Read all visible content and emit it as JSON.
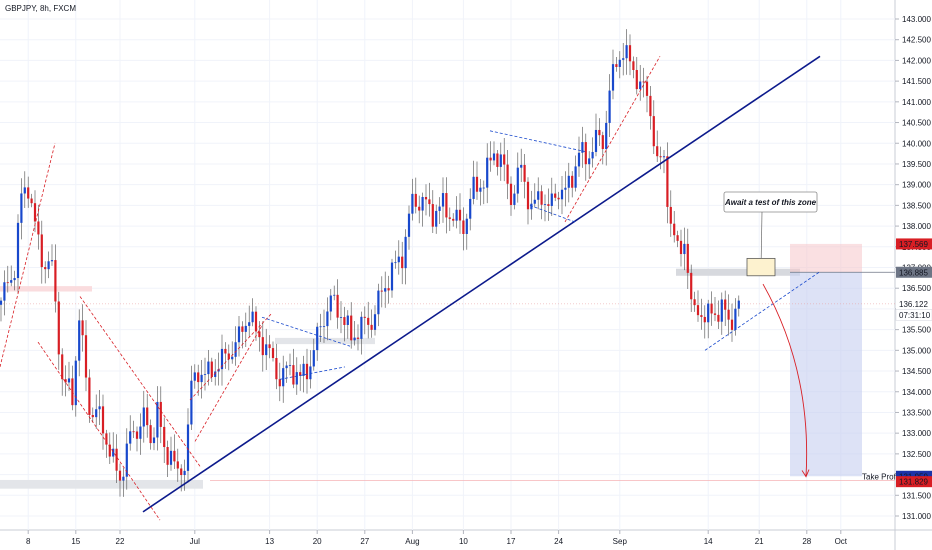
{
  "chart_data": {
    "type": "candlestick",
    "symbol": "GBPJPY, 8h, FXCM",
    "price_scale": {
      "min": 130.6,
      "max": 143.3,
      "ticks": [
        "143.000",
        "142.500",
        "142.000",
        "141.500",
        "141.000",
        "140.500",
        "140.000",
        "139.500",
        "139.000",
        "138.500",
        "138.000",
        "137.500",
        "137.000",
        "136.500",
        "136.000",
        "135.500",
        "135.000",
        "134.500",
        "134.000",
        "133.500",
        "133.000",
        "132.500",
        "132.000",
        "131.500",
        "131.000"
      ]
    },
    "time_scale": {
      "labels": [
        {
          "label": "8",
          "i": 8
        },
        {
          "label": "15",
          "i": 22
        },
        {
          "label": "22",
          "i": 35
        },
        {
          "label": "Jul",
          "i": 57
        },
        {
          "label": "13",
          "i": 79
        },
        {
          "label": "20",
          "i": 93
        },
        {
          "label": "27",
          "i": 107
        },
        {
          "label": "Aug",
          "i": 121
        },
        {
          "label": "10",
          "i": 136
        },
        {
          "label": "17",
          "i": 150
        },
        {
          "label": "24",
          "i": 164
        },
        {
          "label": "Sep",
          "i": 182
        },
        {
          "label": "14",
          "i": 208
        },
        {
          "label": "21",
          "i": 223
        },
        {
          "label": "28",
          "i": 237
        },
        {
          "label": "Oct",
          "i": 247
        }
      ]
    },
    "anchors": [
      [
        0,
        136.2
      ],
      [
        4,
        137.0
      ],
      [
        6,
        138.7
      ],
      [
        8,
        139.0
      ],
      [
        10,
        138.0
      ],
      [
        12,
        137.2
      ],
      [
        15,
        137.0
      ],
      [
        18,
        134.3
      ],
      [
        21,
        133.9
      ],
      [
        23,
        135.8
      ],
      [
        26,
        133.6
      ],
      [
        29,
        133.4
      ],
      [
        33,
        132.3
      ],
      [
        35,
        131.9
      ],
      [
        38,
        132.9
      ],
      [
        40,
        133.1
      ],
      [
        42,
        133.4
      ],
      [
        44,
        132.8
      ],
      [
        46,
        133.6
      ],
      [
        48,
        132.5
      ],
      [
        50,
        132.6
      ],
      [
        52,
        131.9
      ],
      [
        54,
        132.3
      ],
      [
        56,
        134.1
      ],
      [
        58,
        134.5
      ],
      [
        61,
        134.4
      ],
      [
        64,
        134.7
      ],
      [
        67,
        134.9
      ],
      [
        70,
        135.3
      ],
      [
        73,
        135.9
      ],
      [
        75,
        135.4
      ],
      [
        77,
        135.2
      ],
      [
        79,
        134.9
      ],
      [
        82,
        134.3
      ],
      [
        85,
        134.6
      ],
      [
        88,
        134.3
      ],
      [
        91,
        134.7
      ],
      [
        94,
        135.6
      ],
      [
        97,
        136.2
      ],
      [
        100,
        135.9
      ],
      [
        103,
        135.3
      ],
      [
        106,
        135.6
      ],
      [
        109,
        135.7
      ],
      [
        112,
        136.4
      ],
      [
        115,
        136.9
      ],
      [
        118,
        137.3
      ],
      [
        121,
        138.6
      ],
      [
        124,
        138.6
      ],
      [
        127,
        138.3
      ],
      [
        130,
        138.5
      ],
      [
        133,
        138.2
      ],
      [
        136,
        138.0
      ],
      [
        139,
        138.9
      ],
      [
        142,
        139.1
      ],
      [
        145,
        139.8
      ],
      [
        147,
        139.6
      ],
      [
        150,
        138.7
      ],
      [
        153,
        139.4
      ],
      [
        156,
        138.4
      ],
      [
        159,
        138.8
      ],
      [
        161,
        138.4
      ],
      [
        164,
        138.9
      ],
      [
        166,
        138.8
      ],
      [
        168,
        139.2
      ],
      [
        170,
        139.8
      ],
      [
        172,
        139.6
      ],
      [
        175,
        140.1
      ],
      [
        177,
        140.0
      ],
      [
        179,
        141.3
      ],
      [
        181,
        141.9
      ],
      [
        183,
        142.3
      ],
      [
        185,
        141.9
      ],
      [
        187,
        141.6
      ],
      [
        189,
        141.3
      ],
      [
        191,
        140.8
      ],
      [
        193,
        139.5
      ],
      [
        195,
        139.6
      ],
      [
        197,
        138.0
      ],
      [
        199,
        137.4
      ],
      [
        201,
        137.7
      ],
      [
        203,
        136.0
      ],
      [
        205,
        136.1
      ],
      [
        207,
        135.6
      ],
      [
        209,
        136.1
      ],
      [
        211,
        135.8
      ],
      [
        213,
        136.0
      ],
      [
        215,
        135.7
      ],
      [
        217,
        136.0
      ]
    ],
    "colors": {
      "up": "#1848cc",
      "down": "#d81e24",
      "trendline": "#0c1a8c",
      "channel": "#d81e24"
    },
    "labels": {
      "current_price": "136.122",
      "countdown": "07:31:10",
      "stop_price": "137.569",
      "entry_price": "136.885",
      "target_price": "131.959",
      "low_price": "131.829",
      "take_profit": "Take Profit"
    },
    "annotation": "Await a test of this zone"
  }
}
